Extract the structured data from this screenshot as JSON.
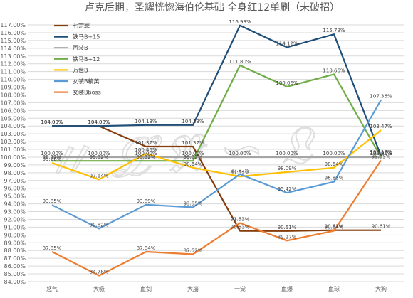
{
  "chart_data": {
    "type": "line",
    "title": "卢克后期，圣耀恍惚海伯伦基础 全身红12单刷（未破招）",
    "xlabel": "",
    "ylabel": "",
    "ylim": [
      0.84,
      1.17
    ],
    "y_tick_step": 0.01,
    "y_tick_format": "percent_2dp",
    "grid": "horizontal",
    "legend_position": "left",
    "categories": [
      "怒气",
      "大吸",
      "血剑",
      "大崩",
      "一觉",
      "血爆",
      "血球",
      "大狗"
    ],
    "series": [
      {
        "name": "七宗罪",
        "color": "#843c0c",
        "values": [
          1.04,
          1.04,
          1.0137,
          1.0137,
          0.9053,
          0.9051,
          0.9061,
          0.9061
        ],
        "labels": [
          "104.00%",
          "104.00%",
          "101.37%",
          "101.37%",
          "90.53%",
          "90.51%",
          "90.61%",
          "90.61%"
        ]
      },
      {
        "name": "铁马B+15",
        "color": "#1f4e79",
        "values": [
          1.04,
          1.04,
          1.0413,
          1.0413,
          1.1693,
          1.1412,
          1.1579,
          1.0017
        ],
        "labels": [
          "104.00%",
          "104.00%",
          "104.13%",
          "104.13%",
          "116.93%",
          "114.12%",
          "115.79%",
          "100.17%"
        ]
      },
      {
        "name": "西装B",
        "color": "#a5a5a5",
        "values": [
          1.0,
          1.0,
          1.0,
          1.0,
          1.0,
          1.0,
          1.0,
          1.0
        ],
        "labels": [
          "100.00%",
          "100.00%",
          "100.00%",
          "100.00%",
          "100.00%",
          "100.00%",
          "100.00%",
          "100.00%"
        ]
      },
      {
        "name": "铁马B+12",
        "color": "#70ad47",
        "values": [
          0.9952,
          0.9952,
          0.9952,
          0.9952,
          1.118,
          1.0906,
          1.1066,
          1.0
        ],
        "labels": [
          "99.52%",
          "99.52%",
          "99.52%",
          "99.52%",
          "111.80%",
          "109.06%",
          "110.66%",
          "100.00%"
        ]
      },
      {
        "name": "万世B",
        "color": "#ffc000",
        "values": [
          0.9926,
          0.9714,
          1.0046,
          0.9864,
          0.9752,
          0.9809,
          0.9864,
          1.0347
        ],
        "labels": [
          "99.26%",
          "97.14%",
          "100.46%",
          "98.64%",
          "97.52%",
          "98.09%",
          "98.64%",
          "103.47%"
        ]
      },
      {
        "name": "女装B精英",
        "color": "#5b9bd5",
        "values": [
          0.9385,
          0.9082,
          0.9389,
          0.9355,
          0.9782,
          0.9542,
          0.9683,
          1.0736
        ],
        "labels": [
          "93.85%",
          "90.82%",
          "93.89%",
          "93.55%",
          "97.82%",
          "95.42%",
          "96.83%",
          "107.36%"
        ]
      },
      {
        "name": "女装Bboss",
        "color": "#ed7d31",
        "values": [
          0.8785,
          0.8478,
          0.8784,
          0.8752,
          0.9153,
          0.8927,
          0.9054,
          0.9959
        ],
        "labels": [
          "87.85%",
          "84.78%",
          "87.84%",
          "87.52%",
          "91.53%",
          "89.27%",
          "90.54%",
          "99.59%"
        ]
      }
    ]
  }
}
